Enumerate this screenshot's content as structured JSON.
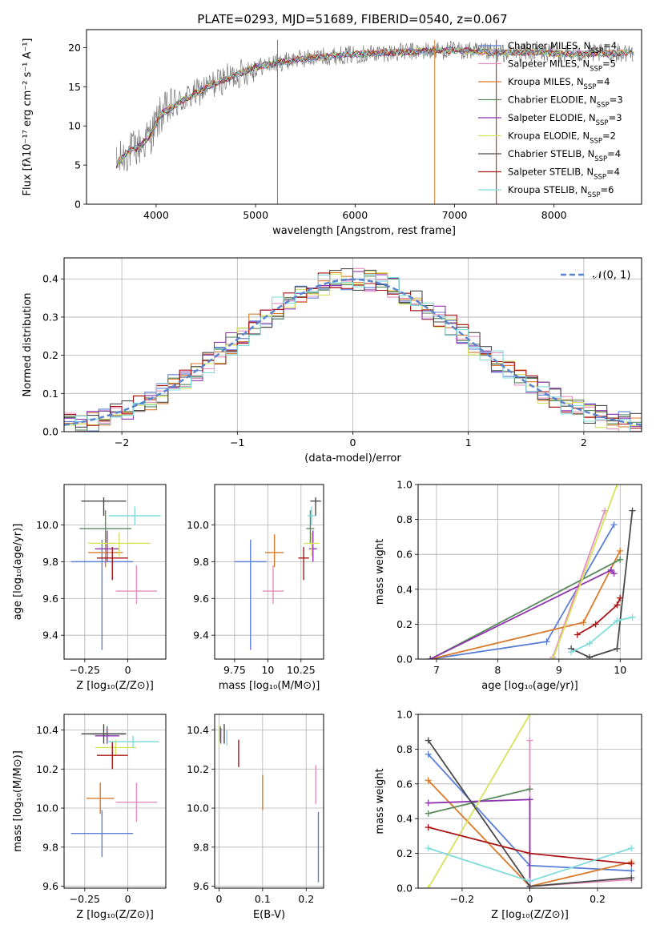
{
  "title": "PLATE=0293, MJD=51689, FIBERID=0540, z=0.067",
  "colors": {
    "Chabrier MILES": "#5b7fd6",
    "Salpeter MILES": "#e38fbf",
    "Kroupa MILES": "#d97a2b",
    "Chabrier ELODIE": "#5a8a5e",
    "Salpeter ELODIE": "#8e35b0",
    "Kroupa ELODIE": "#d6e35a",
    "Chabrier STELIB": "#4a4a4a",
    "Salpeter STELIB": "#aa1515",
    "Kroupa STELIB": "#7fdcdc"
  },
  "chart_data": [
    {
      "type": "line",
      "name": "spectrum",
      "xlabel": "wavelength [Angstrom, rest frame]",
      "ylabel": "Flux [fλ10⁻¹⁷ erg cm⁻² s⁻¹ A⁻¹]",
      "xlim": [
        3300,
        8880
      ],
      "ylim": [
        0,
        22.3
      ],
      "xticks": [
        4000,
        5000,
        6000,
        7000,
        8000
      ],
      "yticks": [
        0,
        5,
        10,
        15,
        20
      ],
      "legend_position": "top-right",
      "series": [
        {
          "name": "Chabrier MILES, N",
          "nssp": "4"
        },
        {
          "name": "Salpeter MILES, N",
          "nssp": "5"
        },
        {
          "name": "Kroupa MILES, N",
          "nssp": "4"
        },
        {
          "name": "Chabrier ELODIE, N",
          "nssp": "3"
        },
        {
          "name": "Salpeter ELODIE, N",
          "nssp": "3"
        },
        {
          "name": "Kroupa ELODIE, N",
          "nssp": "2"
        },
        {
          "name": "Chabrier STELIB, N",
          "nssp": "4"
        },
        {
          "name": "Salpeter STELIB, N",
          "nssp": "4"
        },
        {
          "name": "Kroupa STELIB, N",
          "nssp": "6"
        }
      ],
      "continuum": [
        [
          3600,
          5
        ],
        [
          3700,
          6.5
        ],
        [
          3850,
          7.5
        ],
        [
          3950,
          9
        ],
        [
          4050,
          11.5
        ],
        [
          4300,
          13.5
        ],
        [
          4600,
          15.5
        ],
        [
          5000,
          17.5
        ],
        [
          5400,
          18.5
        ],
        [
          5800,
          19
        ],
        [
          6200,
          19.3
        ],
        [
          6600,
          19.5
        ],
        [
          7000,
          19.7
        ],
        [
          7400,
          19.3
        ],
        [
          7800,
          19.4
        ],
        [
          8200,
          19.2
        ],
        [
          8600,
          19.3
        ],
        [
          8800,
          19.4
        ]
      ]
    },
    {
      "type": "line",
      "name": "residuals",
      "xlabel": "(data-model)/error",
      "ylabel": "Normed distribution",
      "xlim": [
        -2.5,
        2.5
      ],
      "ylim": [
        0,
        0.455
      ],
      "xticks": [
        -2,
        -1,
        0,
        1,
        2
      ],
      "yticks": [
        0.0,
        0.1,
        0.2,
        0.3,
        0.4
      ],
      "legend": "𝒩(0, 1)",
      "legend_position": "top-right",
      "bin_width": 0.1
    },
    {
      "type": "scatter",
      "name": "age-vs-Z",
      "xlabel": "Z [log₁₀(Z/Z⊙)]",
      "ylabel": "age  [log₁₀(age/yr)]",
      "xlim": [
        -0.37,
        0.22
      ],
      "ylim": [
        9.27,
        10.22
      ],
      "xticks": [
        -0.25,
        0.0
      ],
      "yticks": [
        9.4,
        9.6,
        9.8,
        10.0
      ],
      "points": [
        {
          "model": "Chabrier MILES",
          "x": -0.15,
          "xerr": 0.18,
          "y": 9.8,
          "yerr": [
            0.48,
            0.12
          ]
        },
        {
          "model": "Salpeter MILES",
          "x": 0.05,
          "xerr": 0.12,
          "y": 9.64,
          "yerr": [
            0.07,
            0.14
          ]
        },
        {
          "model": "Kroupa MILES",
          "x": -0.13,
          "xerr": 0.1,
          "y": 9.85,
          "yerr": [
            0.08,
            0.1
          ]
        },
        {
          "model": "Chabrier ELODIE",
          "x": -0.13,
          "xerr": 0.15,
          "y": 9.98,
          "yerr": [
            0.08,
            0.1
          ]
        },
        {
          "model": "Salpeter ELODIE",
          "x": -0.12,
          "xerr": 0.07,
          "y": 9.87,
          "yerr": [
            0.07,
            0.1
          ]
        },
        {
          "model": "Kroupa ELODIE",
          "x": -0.05,
          "xerr": 0.18,
          "y": 9.9,
          "yerr": [
            0.07,
            0.06
          ]
        },
        {
          "model": "Chabrier STELIB",
          "x": -0.14,
          "xerr": 0.13,
          "y": 10.13,
          "yerr": [
            0.08,
            0.02
          ]
        },
        {
          "model": "Salpeter STELIB",
          "x": -0.09,
          "xerr": 0.09,
          "y": 9.82,
          "yerr": [
            0.12,
            0.06
          ]
        },
        {
          "model": "Kroupa STELIB",
          "x": 0.04,
          "xerr": 0.15,
          "y": 10.05,
          "yerr": [
            0.05,
            0.05
          ]
        }
      ]
    },
    {
      "type": "scatter",
      "name": "age-vs-mass",
      "xlabel": "mass [log₁₀(M/M⊙)]",
      "ylabel": "",
      "xlim": [
        9.6,
        10.42
      ],
      "ylim": [
        9.27,
        10.22
      ],
      "xticks": [
        9.75,
        10.0,
        10.25
      ],
      "yticks": [
        9.4,
        9.6,
        9.8,
        10.0
      ],
      "points": [
        {
          "model": "Chabrier MILES",
          "x": 9.87,
          "xerr": 0.12,
          "y": 9.8,
          "yerr": [
            0.48,
            0.12
          ]
        },
        {
          "model": "Salpeter MILES",
          "x": 10.04,
          "y": 9.64,
          "xerr": 0.08,
          "yerr": [
            0.07,
            0.14
          ]
        },
        {
          "model": "Kroupa MILES",
          "x": 10.05,
          "xerr": 0.07,
          "y": 9.85,
          "yerr": [
            0.08,
            0.1
          ]
        },
        {
          "model": "Chabrier ELODIE",
          "x": 10.32,
          "xerr": 0.03,
          "y": 9.98,
          "yerr": [
            0.08,
            0.1
          ]
        },
        {
          "model": "Salpeter ELODIE",
          "x": 10.34,
          "xerr": 0.03,
          "y": 9.87,
          "yerr": [
            0.07,
            0.1
          ]
        },
        {
          "model": "Kroupa ELODIE",
          "x": 10.33,
          "xerr": 0.06,
          "y": 9.9,
          "yerr": [
            0.07,
            0.06
          ]
        },
        {
          "model": "Chabrier STELIB",
          "x": 10.36,
          "xerr": 0.04,
          "y": 10.13,
          "yerr": [
            0.08,
            0.02
          ]
        },
        {
          "model": "Salpeter STELIB",
          "x": 10.27,
          "xerr": 0.04,
          "y": 9.82,
          "yerr": [
            0.12,
            0.06
          ]
        },
        {
          "model": "Kroupa STELIB",
          "x": 10.33,
          "xerr": 0.03,
          "y": 10.05,
          "yerr": [
            0.05,
            0.05
          ]
        }
      ]
    },
    {
      "type": "line",
      "name": "mass-weight-vs-age",
      "xlabel": "age  [log₁₀(age/yr)]",
      "ylabel": "mass weight",
      "xlim": [
        6.7,
        10.35
      ],
      "ylim": [
        0,
        1
      ],
      "xticks": [
        7,
        8,
        9,
        10
      ],
      "yticks": [
        0.0,
        0.2,
        0.4,
        0.6,
        0.8,
        1.0
      ],
      "series": [
        {
          "model": "Chabrier MILES",
          "x": [
            6.9,
            8.8,
            9.9
          ],
          "y": [
            0.0,
            0.1,
            0.77
          ]
        },
        {
          "model": "Salpeter MILES",
          "x": [
            8.9,
            9.75
          ],
          "y": [
            0.01,
            0.85
          ]
        },
        {
          "model": "Kroupa MILES",
          "x": [
            6.9,
            9.4,
            10.0
          ],
          "y": [
            0.0,
            0.21,
            0.62
          ]
        },
        {
          "model": "Chabrier ELODIE",
          "x": [
            6.9,
            10.0
          ],
          "y": [
            0.0,
            0.57
          ]
        },
        {
          "model": "Salpeter ELODIE",
          "x": [
            6.9,
            9.85,
            9.9
          ],
          "y": [
            0.0,
            0.51,
            0.49
          ]
        },
        {
          "model": "Kroupa ELODIE",
          "x": [
            8.9,
            9.95
          ],
          "y": [
            0.0,
            1.0
          ]
        },
        {
          "model": "Chabrier STELIB",
          "x": [
            9.2,
            9.5,
            9.95,
            10.2
          ],
          "y": [
            0.06,
            0.01,
            0.06,
            0.85
          ]
        },
        {
          "model": "Salpeter STELIB",
          "x": [
            9.3,
            9.6,
            9.95,
            10.0
          ],
          "y": [
            0.14,
            0.2,
            0.31,
            0.35
          ]
        },
        {
          "model": "Kroupa STELIB",
          "x": [
            9.2,
            9.5,
            9.95,
            10.2
          ],
          "y": [
            0.04,
            0.09,
            0.22,
            0.24
          ]
        }
      ]
    },
    {
      "type": "scatter",
      "name": "mass-vs-Z",
      "xlabel": "Z [log₁₀(Z/Z⊙)]",
      "ylabel": "mass [log₁₀(M/M⊙)]",
      "xlim": [
        -0.37,
        0.22
      ],
      "ylim": [
        9.59,
        10.48
      ],
      "xticks": [
        -0.25,
        0.0
      ],
      "yticks": [
        9.6,
        9.8,
        10.0,
        10.2,
        10.4
      ],
      "points": [
        {
          "model": "Chabrier MILES",
          "x": -0.15,
          "xerr": 0.18,
          "y": 9.87,
          "yerr": 0.12
        },
        {
          "model": "Salpeter MILES",
          "x": 0.05,
          "xerr": 0.12,
          "y": 10.03,
          "yerr": 0.1
        },
        {
          "model": "Kroupa MILES",
          "x": -0.16,
          "xerr": 0.08,
          "y": 10.05,
          "yerr": 0.08
        },
        {
          "model": "Chabrier ELODIE",
          "x": -0.12,
          "xerr": 0.1,
          "y": 10.38,
          "yerr": 0.04
        },
        {
          "model": "Salpeter ELODIE",
          "x": -0.12,
          "xerr": 0.07,
          "y": 10.37,
          "yerr": 0.04
        },
        {
          "model": "Kroupa ELODIE",
          "x": -0.07,
          "xerr": 0.12,
          "y": 10.31,
          "yerr": 0.04
        },
        {
          "model": "Chabrier STELIB",
          "x": -0.14,
          "xerr": 0.13,
          "y": 10.38,
          "yerr": 0.05
        },
        {
          "model": "Salpeter STELIB",
          "x": -0.09,
          "xerr": 0.09,
          "y": 10.27,
          "yerr": 0.07
        },
        {
          "model": "Kroupa STELIB",
          "x": 0.03,
          "xerr": 0.15,
          "y": 10.34,
          "yerr": 0.03
        }
      ]
    },
    {
      "type": "scatter",
      "name": "mass-vs-EBV",
      "xlabel": "E(B-V)",
      "ylabel": "",
      "xlim": [
        -0.01,
        0.24
      ],
      "ylim": [
        9.59,
        10.48
      ],
      "xticks": [
        0.0,
        0.1,
        0.2
      ],
      "yticks": [
        9.6,
        9.8,
        10.0,
        10.2,
        10.4
      ],
      "points": [
        {
          "model": "Chabrier MILES",
          "x": 0.228,
          "y": 9.8,
          "yerr": 0.18
        },
        {
          "model": "Salpeter MILES",
          "x": 0.222,
          "y": 10.12,
          "yerr": 0.1
        },
        {
          "model": "Kroupa MILES",
          "x": 0.1,
          "y": 10.08,
          "yerr": 0.09
        },
        {
          "model": "Chabrier ELODIE",
          "x": 0.003,
          "y": 10.38,
          "yerr": 0.04
        },
        {
          "model": "Salpeter ELODIE",
          "x": 0.004,
          "y": 10.37,
          "yerr": 0.04
        },
        {
          "model": "Kroupa ELODIE",
          "x": 0.0,
          "y": 10.37,
          "yerr": 0.06
        },
        {
          "model": "Chabrier STELIB",
          "x": 0.012,
          "y": 10.38,
          "yerr": 0.05
        },
        {
          "model": "Salpeter STELIB",
          "x": 0.045,
          "y": 10.28,
          "yerr": 0.07
        },
        {
          "model": "Kroupa STELIB",
          "x": 0.018,
          "y": 10.36,
          "yerr": 0.04
        }
      ]
    },
    {
      "type": "line",
      "name": "mass-weight-vs-Z",
      "xlabel": "Z [log₁₀(Z/Z⊙)]",
      "ylabel": "mass weight",
      "xlim": [
        -0.33,
        0.33
      ],
      "ylim": [
        0,
        1
      ],
      "xticks": [
        -0.2,
        0.0,
        0.2
      ],
      "yticks": [
        0.0,
        0.2,
        0.4,
        0.6,
        0.8,
        1.0
      ],
      "series": [
        {
          "model": "Chabrier MILES",
          "x": [
            -0.3,
            0.0,
            0.3
          ],
          "y": [
            0.77,
            0.13,
            0.1
          ]
        },
        {
          "model": "Salpeter MILES",
          "x": [
            0.0,
            0.0,
            0.3
          ],
          "y": [
            0.85,
            0.01,
            0.05
          ]
        },
        {
          "model": "Kroupa MILES",
          "x": [
            -0.3,
            0.0,
            0.3
          ],
          "y": [
            0.62,
            0.01,
            0.15
          ]
        },
        {
          "model": "Chabrier ELODIE",
          "x": [
            -0.3,
            0.0
          ],
          "y": [
            0.43,
            0.57
          ]
        },
        {
          "model": "Salpeter ELODIE",
          "x": [
            -0.3,
            0.0,
            0.0
          ],
          "y": [
            0.49,
            0.51,
            0.01
          ]
        },
        {
          "model": "Kroupa ELODIE",
          "x": [
            -0.3,
            0.0
          ],
          "y": [
            0.0,
            1.0
          ]
        },
        {
          "model": "Chabrier STELIB",
          "x": [
            -0.3,
            0.0,
            0.3
          ],
          "y": [
            0.85,
            0.01,
            0.06
          ]
        },
        {
          "model": "Salpeter STELIB",
          "x": [
            -0.3,
            0.0,
            0.3
          ],
          "y": [
            0.35,
            0.2,
            0.14
          ]
        },
        {
          "model": "Kroupa STELIB",
          "x": [
            -0.3,
            0.0,
            0.3
          ],
          "y": [
            0.23,
            0.04,
            0.23
          ]
        }
      ]
    }
  ]
}
